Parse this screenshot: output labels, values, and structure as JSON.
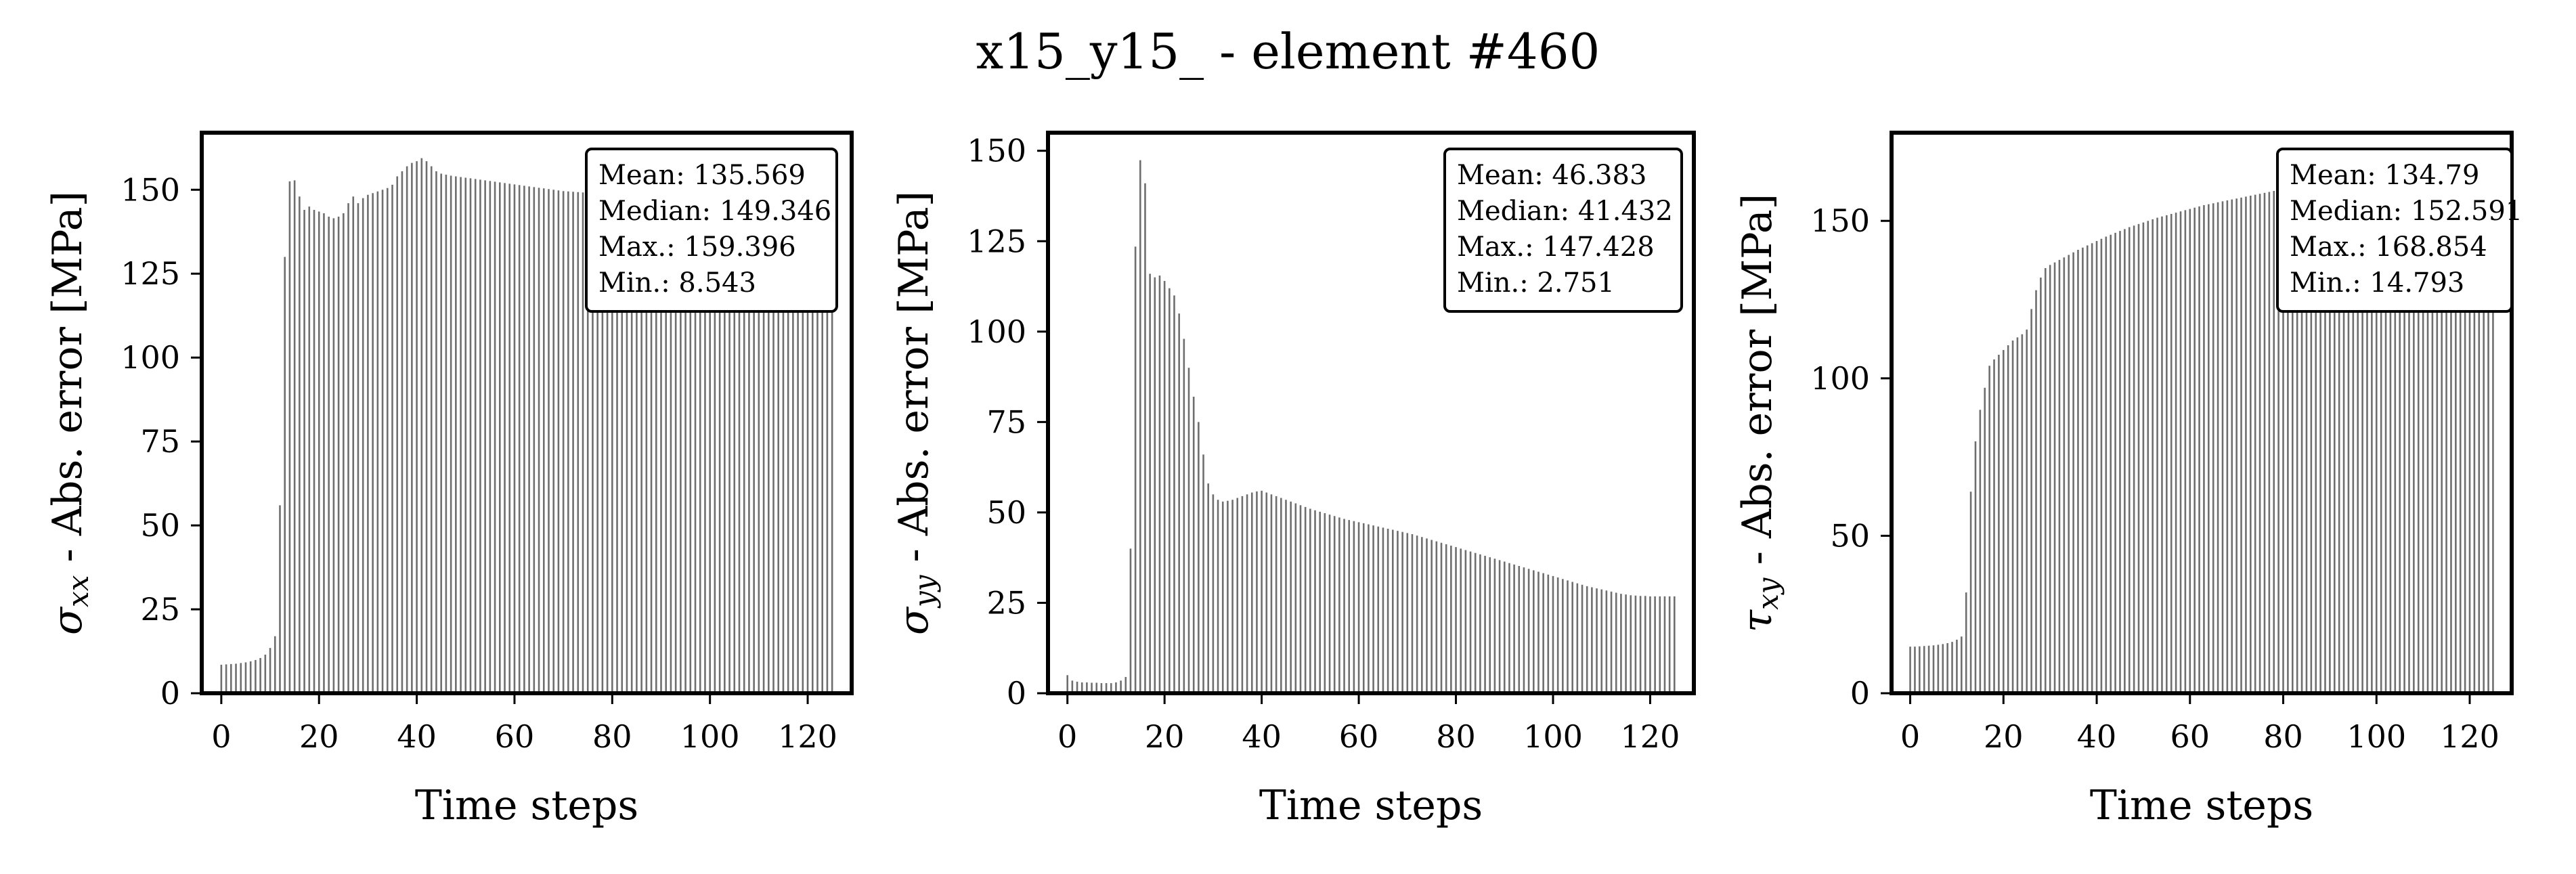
{
  "figure": {
    "title": "x15_y15_ - element #460"
  },
  "chart_data": [
    {
      "type": "bar",
      "xlabel": "Time steps",
      "ylabel_symbol": "σ",
      "ylabel_subscript": "xx",
      "ylabel_rest": " - Abs. error [MPa]",
      "xlim": [
        -4,
        129
      ],
      "ylim": [
        0,
        167
      ],
      "xticks": [
        0,
        20,
        40,
        60,
        80,
        100,
        120
      ],
      "yticks": [
        0,
        25,
        50,
        75,
        100,
        125,
        150
      ],
      "stats": [
        "Mean: 135.569",
        "Median: 149.346",
        "Max.: 159.396",
        "Min.: 8.543"
      ],
      "x_start": 0,
      "x_end": 125,
      "values": [
        8.5,
        8.6,
        8.7,
        8.8,
        9.0,
        9.2,
        9.5,
        9.9,
        10.5,
        11.5,
        13.5,
        17.0,
        56.0,
        130.0,
        152.5,
        152.8,
        148.0,
        144.0,
        145.0,
        144.0,
        143.5,
        143.0,
        142.0,
        141.5,
        142.0,
        143.0,
        146.0,
        148.0,
        146.0,
        147.5,
        148.5,
        149.0,
        149.5,
        150.0,
        150.5,
        151.5,
        154.0,
        155.5,
        157.0,
        158.0,
        158.5,
        159.4,
        158.5,
        157.0,
        155.5,
        154.8,
        154.5,
        154.2,
        154.0,
        153.8,
        153.6,
        153.4,
        153.2,
        153.0,
        152.8,
        152.6,
        152.4,
        152.2,
        152.0,
        151.8,
        151.6,
        151.4,
        151.2,
        151.0,
        150.8,
        150.6,
        150.4,
        150.2,
        150.0,
        149.8,
        149.6,
        149.5,
        149.4,
        149.3,
        149.2,
        149.1,
        149.0,
        148.9,
        148.8,
        148.7,
        148.6,
        148.5,
        148.4,
        148.3,
        148.2,
        148.1,
        148.0,
        147.9,
        147.8,
        147.7,
        147.6,
        147.5,
        147.4,
        147.3,
        147.2,
        147.1,
        147.0,
        146.9,
        146.8,
        146.7,
        146.6,
        146.5,
        146.4,
        146.3,
        146.2,
        146.1,
        146.0,
        145.9,
        145.8,
        145.7,
        145.6,
        145.5,
        145.4,
        145.3,
        145.2,
        145.1,
        145.0,
        144.9,
        144.8,
        144.7,
        144.6,
        144.5,
        144.4,
        144.3,
        144.2,
        144.1
      ]
    },
    {
      "type": "bar",
      "xlabel": "Time steps",
      "ylabel_symbol": "σ",
      "ylabel_subscript": "yy",
      "ylabel_rest": " - Abs. error [MPa]",
      "xlim": [
        -4,
        129
      ],
      "ylim": [
        0,
        155
      ],
      "xticks": [
        0,
        20,
        40,
        60,
        80,
        100,
        120
      ],
      "yticks": [
        0,
        25,
        50,
        75,
        100,
        125,
        150
      ],
      "stats": [
        "Mean: 46.383",
        "Median: 41.432",
        "Max.: 147.428",
        "Min.: 2.751"
      ],
      "x_start": 0,
      "x_end": 125,
      "values": [
        5.0,
        3.5,
        3.2,
        3.0,
        3.0,
        2.9,
        2.9,
        2.8,
        2.8,
        2.8,
        3.0,
        3.5,
        4.5,
        40.0,
        123.5,
        147.4,
        141.0,
        116.0,
        115.0,
        115.5,
        114.0,
        112.0,
        110.0,
        105.0,
        98.0,
        90.0,
        82.0,
        75.0,
        66.0,
        58.0,
        55.0,
        53.5,
        53.0,
        53.2,
        53.5,
        54.0,
        54.5,
        55.0,
        55.5,
        55.8,
        56.0,
        55.5,
        55.0,
        54.5,
        54.0,
        53.5,
        53.0,
        52.5,
        52.0,
        51.5,
        51.0,
        50.6,
        50.2,
        49.8,
        49.4,
        49.0,
        48.6,
        48.2,
        47.9,
        47.6,
        47.3,
        47.0,
        46.7,
        46.4,
        46.1,
        45.8,
        45.5,
        45.2,
        44.9,
        44.6,
        44.3,
        44.0,
        43.6,
        43.2,
        42.8,
        42.4,
        42.0,
        41.6,
        41.2,
        40.8,
        40.4,
        40.0,
        39.6,
        39.2,
        38.8,
        38.4,
        38.0,
        37.6,
        37.2,
        36.8,
        36.4,
        36.0,
        35.6,
        35.2,
        34.8,
        34.4,
        34.0,
        33.6,
        33.2,
        32.8,
        32.4,
        32.0,
        31.6,
        31.2,
        30.8,
        30.4,
        30.0,
        29.6,
        29.3,
        29.0,
        28.7,
        28.4,
        28.1,
        27.8,
        27.5,
        27.3,
        27.1,
        27.0,
        26.9,
        26.9,
        26.8,
        26.8,
        26.8,
        26.8,
        26.8,
        26.8
      ]
    },
    {
      "type": "bar",
      "xlabel": "Time steps",
      "ylabel_symbol": "τ",
      "ylabel_subscript": "xy",
      "ylabel_rest": " - Abs. error [MPa]",
      "xlim": [
        -4,
        129
      ],
      "ylim": [
        0,
        178
      ],
      "xticks": [
        0,
        20,
        40,
        60,
        80,
        100,
        120
      ],
      "yticks": [
        0,
        50,
        100,
        150
      ],
      "stats": [
        "Mean: 134.79",
        "Median: 152.591",
        "Max.: 168.854",
        "Min.: 14.793"
      ],
      "x_start": 0,
      "x_end": 125,
      "values": [
        14.8,
        14.8,
        14.9,
        15.0,
        15.1,
        15.2,
        15.4,
        15.6,
        15.9,
        16.3,
        17.0,
        18.0,
        32.0,
        64.0,
        80.0,
        90.0,
        97.0,
        104.0,
        106.0,
        107.5,
        109.0,
        110.5,
        112.0,
        113.0,
        114.0,
        115.5,
        122.0,
        128.0,
        132.0,
        135.0,
        136.0,
        136.8,
        137.6,
        138.4,
        139.2,
        140.0,
        140.8,
        141.5,
        142.2,
        142.9,
        143.6,
        144.3,
        145.0,
        145.6,
        146.2,
        146.8,
        147.4,
        148.0,
        148.5,
        149.0,
        149.5,
        150.0,
        150.5,
        151.0,
        151.4,
        151.8,
        152.2,
        152.6,
        153.0,
        153.4,
        153.8,
        154.2,
        154.6,
        155.0,
        155.3,
        155.6,
        155.9,
        156.2,
        156.5,
        156.8,
        157.1,
        157.4,
        157.7,
        158.0,
        158.3,
        158.6,
        158.9,
        159.2,
        159.5,
        159.8,
        160.1,
        160.4,
        160.7,
        161.0,
        161.3,
        161.6,
        161.9,
        162.2,
        162.5,
        162.8,
        163.1,
        163.4,
        163.7,
        164.0,
        164.3,
        164.6,
        164.9,
        165.2,
        165.5,
        165.8,
        166.1,
        166.4,
        166.7,
        167.0,
        167.2,
        167.4,
        167.6,
        167.8,
        168.0,
        168.2,
        168.4,
        168.5,
        168.6,
        168.7,
        168.8,
        168.85,
        168.85,
        168.85,
        168.85,
        168.85,
        168.85,
        168.85,
        168.85,
        168.85,
        168.85,
        168.85
      ]
    }
  ]
}
